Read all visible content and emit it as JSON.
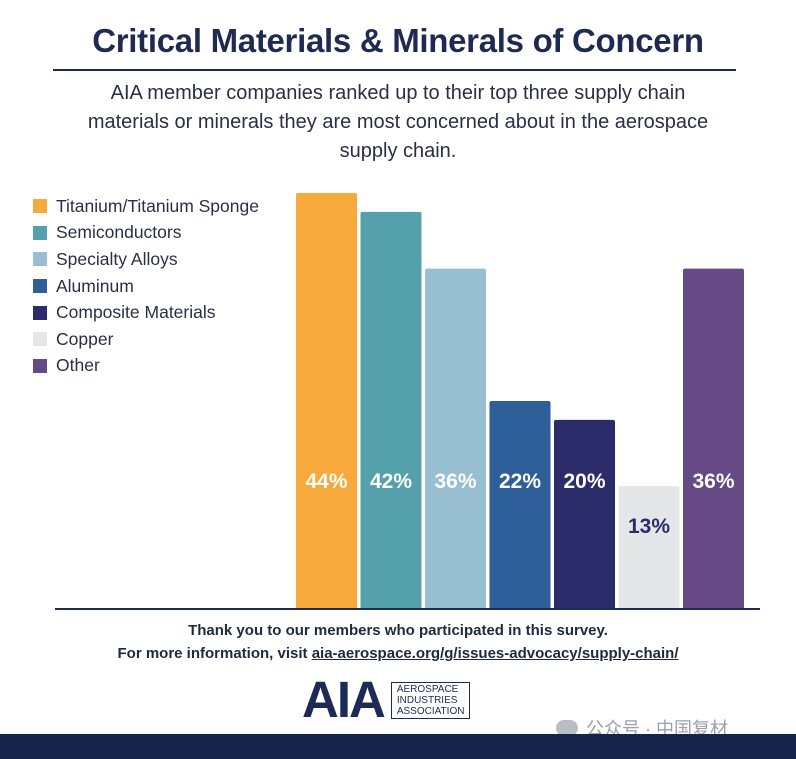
{
  "header": {
    "title": "Critical Materials & Minerals of Concern",
    "subtitle_lines": [
      "AIA member companies ranked up to their top three supply chain",
      "materials or minerals they are most concerned about in the aerospace",
      "supply chain."
    ]
  },
  "chart_data": {
    "type": "bar",
    "categories": [
      "Titanium/Titanium Sponge",
      "Semiconductors",
      "Specialty Alloys",
      "Aluminum",
      "Composite Materials",
      "Copper",
      "Other"
    ],
    "values": [
      44,
      42,
      36,
      22,
      20,
      13,
      36
    ],
    "value_labels": [
      "44%",
      "42%",
      "36%",
      "22%",
      "20%",
      "13%",
      "36%"
    ],
    "colors": [
      "#f7a93b",
      "#55a1ab",
      "#97bfd1",
      "#2e5f99",
      "#2b2d6a",
      "#e4e6e8",
      "#664a86"
    ],
    "label_colors": [
      "#ffffff",
      "#ffffff",
      "#ffffff",
      "#ffffff",
      "#ffffff",
      "#2b2d6a",
      "#ffffff"
    ],
    "ylim": [
      0,
      44
    ],
    "legend_position": "top-left",
    "grid": false
  },
  "footer": {
    "line1": "Thank you to our members who participated in this survey.",
    "line2_prefix": "For more information, visit ",
    "line2_link": "aia-aerospace.org/g/issues-advocacy/supply-chain/"
  },
  "logo": {
    "mark": "AIA",
    "lines": [
      "AEROSPACE",
      "INDUSTRIES",
      "ASSOCIATION"
    ]
  },
  "watermark": "公众号 · 中国复材"
}
